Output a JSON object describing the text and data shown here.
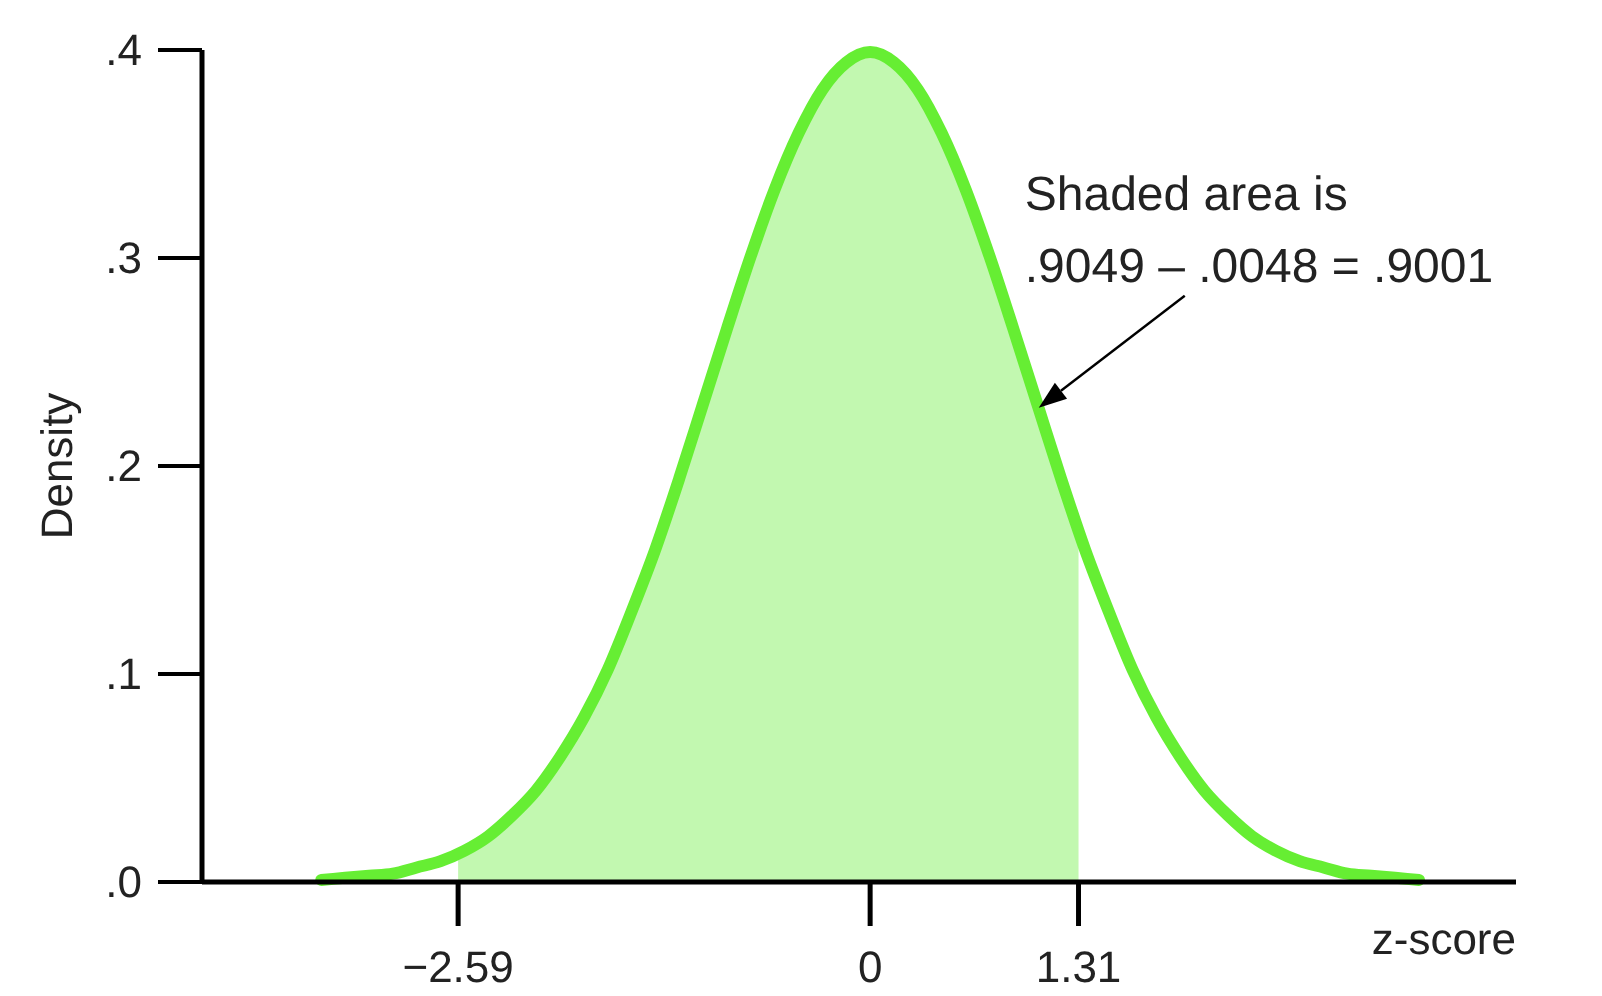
{
  "chart_data": {
    "type": "line",
    "xlabel": "z-score",
    "ylabel": "Density",
    "xlim": [
      -4.2,
      4.06
    ],
    "ylim": [
      0,
      0.4
    ],
    "xticks": [
      {
        "value": -2.59,
        "label": "−2.59"
      },
      0,
      1.31
    ],
    "yticks": [
      {
        "value": 0,
        "label": ".0"
      },
      {
        "value": 0.1,
        "label": ".1"
      },
      {
        "value": 0.2,
        "label": ".2"
      },
      {
        "value": 0.3,
        "label": ".3"
      },
      {
        "value": 0.4,
        "label": ".4"
      }
    ],
    "grid": false,
    "marker": "none",
    "line_style": "solid",
    "series": [
      {
        "type": "area",
        "color": "#c2f8b0",
        "x": [
          -2.59,
          -2.4,
          -2.25,
          -2.1,
          -1.95,
          -1.8,
          -1.65,
          -1.5,
          -1.35,
          -1.2,
          -1.05,
          -0.9,
          -0.75,
          -0.6,
          -0.45,
          -0.3,
          -0.15,
          0,
          0.15,
          0.3,
          0.45,
          0.6,
          0.75,
          0.9,
          1.05,
          1.2,
          1.31
        ],
        "values": [
          0.014,
          0.022,
          0.032,
          0.044,
          0.06,
          0.079,
          0.102,
          0.13,
          0.16,
          0.194,
          0.23,
          0.266,
          0.301,
          0.333,
          0.36,
          0.381,
          0.394,
          0.399,
          0.394,
          0.381,
          0.36,
          0.333,
          0.301,
          0.266,
          0.23,
          0.194,
          0.169
        ]
      },
      {
        "color": "#66ee33",
        "x": [
          -3.45,
          -3.3,
          -3.15,
          -3,
          -2.85,
          -2.7,
          -2.55,
          -2.4,
          -2.25,
          -2.1,
          -1.95,
          -1.8,
          -1.65,
          -1.5,
          -1.35,
          -1.2,
          -1.05,
          -0.9,
          -0.75,
          -0.6,
          -0.45,
          -0.3,
          -0.15,
          0,
          0.15,
          0.3,
          0.45,
          0.6,
          0.75,
          0.9,
          1.05,
          1.2,
          1.35,
          1.5,
          1.65,
          1.8,
          1.95,
          2.1,
          2.25,
          2.4,
          2.55,
          2.7,
          2.85,
          3,
          3.15,
          3.3,
          3.45
        ],
        "values": [
          0.001,
          0.002,
          0.003,
          0.004,
          0.007,
          0.01,
          0.015,
          0.022,
          0.032,
          0.044,
          0.06,
          0.079,
          0.102,
          0.13,
          0.16,
          0.194,
          0.23,
          0.266,
          0.301,
          0.333,
          0.36,
          0.381,
          0.394,
          0.399,
          0.394,
          0.381,
          0.36,
          0.333,
          0.301,
          0.266,
          0.23,
          0.194,
          0.16,
          0.13,
          0.102,
          0.079,
          0.06,
          0.044,
          0.032,
          0.022,
          0.015,
          0.01,
          0.007,
          0.004,
          0.003,
          0.002,
          0.001
        ]
      }
    ],
    "annotations": [
      {
        "text": "Shaded area is\n.9049 – .0048 = .9001",
        "x": 1.06,
        "y": 0.228
      }
    ]
  }
}
